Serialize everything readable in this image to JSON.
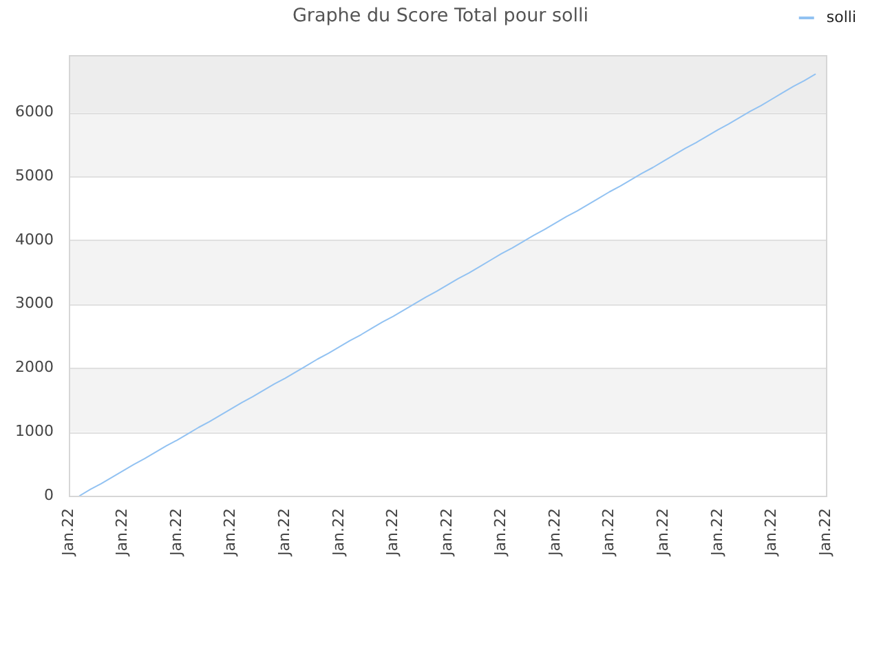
{
  "chart_data": {
    "type": "line",
    "title": "Graphe du Score Total pour solli",
    "categories": [
      "Jan.22",
      null,
      null,
      null,
      null,
      "Jan.22",
      null,
      null,
      null,
      null,
      "Jan.22",
      null,
      null,
      null,
      null,
      "Jan.22",
      null,
      null,
      null,
      null,
      "Jan.22",
      null,
      null,
      null,
      null,
      "Jan.22",
      null,
      null,
      null,
      null,
      "Jan.22",
      null,
      null,
      null,
      null,
      "Jan.22",
      null,
      null,
      null,
      null,
      "Jan.22",
      null,
      null,
      null,
      null,
      "Jan.22",
      null,
      null,
      null,
      null,
      "Jan.22",
      null,
      null,
      null,
      null,
      "Jan.22",
      null,
      null,
      null,
      null,
      "Jan.22",
      null,
      null,
      null,
      null,
      "Jan.22",
      null,
      null,
      null,
      null,
      "Jan.22"
    ],
    "series": [
      {
        "name": "solli",
        "color": "#92c2f2",
        "values": [
          null,
          0,
          100,
          190,
          290,
          390,
          490,
          580,
          680,
          780,
          870,
          970,
          1070,
          1160,
          1260,
          1360,
          1460,
          1550,
          1650,
          1750,
          1840,
          1940,
          2040,
          2140,
          2230,
          2330,
          2430,
          2520,
          2620,
          2720,
          2810,
          2910,
          3010,
          3110,
          3200,
          3300,
          3400,
          3490,
          3590,
          3690,
          3790,
          3880,
          3980,
          4080,
          4170,
          4270,
          4370,
          4460,
          4560,
          4660,
          4760,
          4850,
          4950,
          5050,
          5140,
          5240,
          5340,
          5440,
          5530,
          5630,
          5730,
          5820,
          5920,
          6020,
          6110,
          6210,
          6310,
          6410,
          6500,
          6600,
          null
        ]
      }
    ],
    "ylim": [
      0,
      6900
    ],
    "yticks": [
      0,
      1000,
      2000,
      3000,
      4000,
      5000,
      6000
    ],
    "bands": [
      {
        "axis": "y",
        "from": 1000,
        "to": 2000,
        "color": "#f3f3f3"
      },
      {
        "axis": "y",
        "from": 3000,
        "to": 4000,
        "color": "#f3f3f3"
      },
      {
        "axis": "y",
        "from": 5000,
        "to": 6000,
        "color": "#f3f3f3"
      },
      {
        "axis": "y",
        "from": 6000,
        "to": 6900,
        "color": "#ededed"
      }
    ],
    "grid": "y",
    "legend": "top right",
    "marker": "none"
  }
}
